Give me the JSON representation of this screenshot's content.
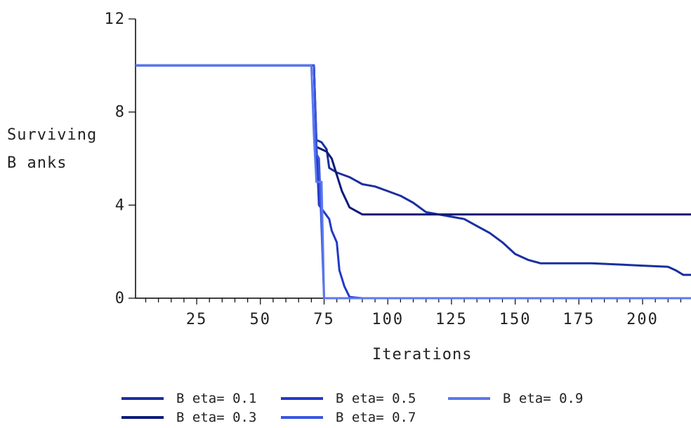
{
  "chart_data": {
    "type": "line",
    "xlabel": "Iterations",
    "ylabel_line1": "Surviving",
    "ylabel_line2": "B anks",
    "xlim": [
      1,
      219
    ],
    "ylim": [
      0,
      12
    ],
    "xticks": [
      25,
      50,
      75,
      100,
      125,
      150,
      175,
      200
    ],
    "yticks": [
      0,
      4,
      8,
      12
    ],
    "grid": false,
    "legend_position": "bottom",
    "series": [
      {
        "name": "B eta= 0.1",
        "color": "#1a2fa0",
        "points": [
          [
            1,
            10
          ],
          [
            71,
            10
          ],
          [
            72,
            6.8
          ],
          [
            74,
            6.7
          ],
          [
            76,
            6.4
          ],
          [
            77,
            5.6
          ],
          [
            80,
            5.4
          ],
          [
            85,
            5.2
          ],
          [
            90,
            4.9
          ],
          [
            95,
            4.8
          ],
          [
            100,
            4.6
          ],
          [
            105,
            4.4
          ],
          [
            110,
            4.1
          ],
          [
            115,
            3.7
          ],
          [
            120,
            3.6
          ],
          [
            125,
            3.5
          ],
          [
            130,
            3.4
          ],
          [
            135,
            3.1
          ],
          [
            140,
            2.8
          ],
          [
            145,
            2.4
          ],
          [
            150,
            1.9
          ],
          [
            155,
            1.65
          ],
          [
            160,
            1.5
          ],
          [
            170,
            1.5
          ],
          [
            180,
            1.5
          ],
          [
            190,
            1.45
          ],
          [
            200,
            1.4
          ],
          [
            210,
            1.35
          ],
          [
            213,
            1.2
          ],
          [
            216,
            1.0
          ],
          [
            219,
            1.0
          ]
        ]
      },
      {
        "name": "B eta= 0.3",
        "color": "#0d1b78",
        "points": [
          [
            1,
            10
          ],
          [
            71,
            10
          ],
          [
            72,
            6.5
          ],
          [
            74,
            6.4
          ],
          [
            76,
            6.3
          ],
          [
            78,
            6.0
          ],
          [
            80,
            5.3
          ],
          [
            82,
            4.6
          ],
          [
            85,
            3.9
          ],
          [
            90,
            3.6
          ],
          [
            100,
            3.6
          ],
          [
            150,
            3.6
          ],
          [
            219,
            3.6
          ]
        ]
      },
      {
        "name": "B eta= 0.5",
        "color": "#2338c8",
        "points": [
          [
            1,
            10
          ],
          [
            71,
            10
          ],
          [
            72,
            6.6
          ],
          [
            73,
            4.0
          ],
          [
            75,
            3.7
          ],
          [
            77,
            3.4
          ],
          [
            78,
            2.9
          ],
          [
            80,
            2.4
          ],
          [
            81,
            1.2
          ],
          [
            83,
            0.5
          ],
          [
            85,
            0.05
          ],
          [
            90,
            0
          ],
          [
            219,
            0
          ]
        ]
      },
      {
        "name": "B eta= 0.7",
        "color": "#3a56e0",
        "points": [
          [
            1,
            10
          ],
          [
            71,
            10
          ],
          [
            72,
            6.2
          ],
          [
            73,
            6.0
          ],
          [
            74,
            3.0
          ],
          [
            75,
            0
          ],
          [
            219,
            0
          ]
        ]
      },
      {
        "name": "B eta= 0.9",
        "color": "#5b78ee",
        "points": [
          [
            1,
            10
          ],
          [
            70,
            10
          ],
          [
            71,
            7.0
          ],
          [
            72,
            5.0
          ],
          [
            73,
            5.0
          ],
          [
            74,
            5.0
          ],
          [
            75,
            0
          ],
          [
            219,
            0
          ]
        ]
      }
    ]
  },
  "legend": {
    "row1": [
      "B eta= 0.1",
      "B eta= 0.5",
      "B eta= 0.9"
    ],
    "row2": [
      "B eta= 0.3",
      "B eta= 0.7"
    ]
  }
}
